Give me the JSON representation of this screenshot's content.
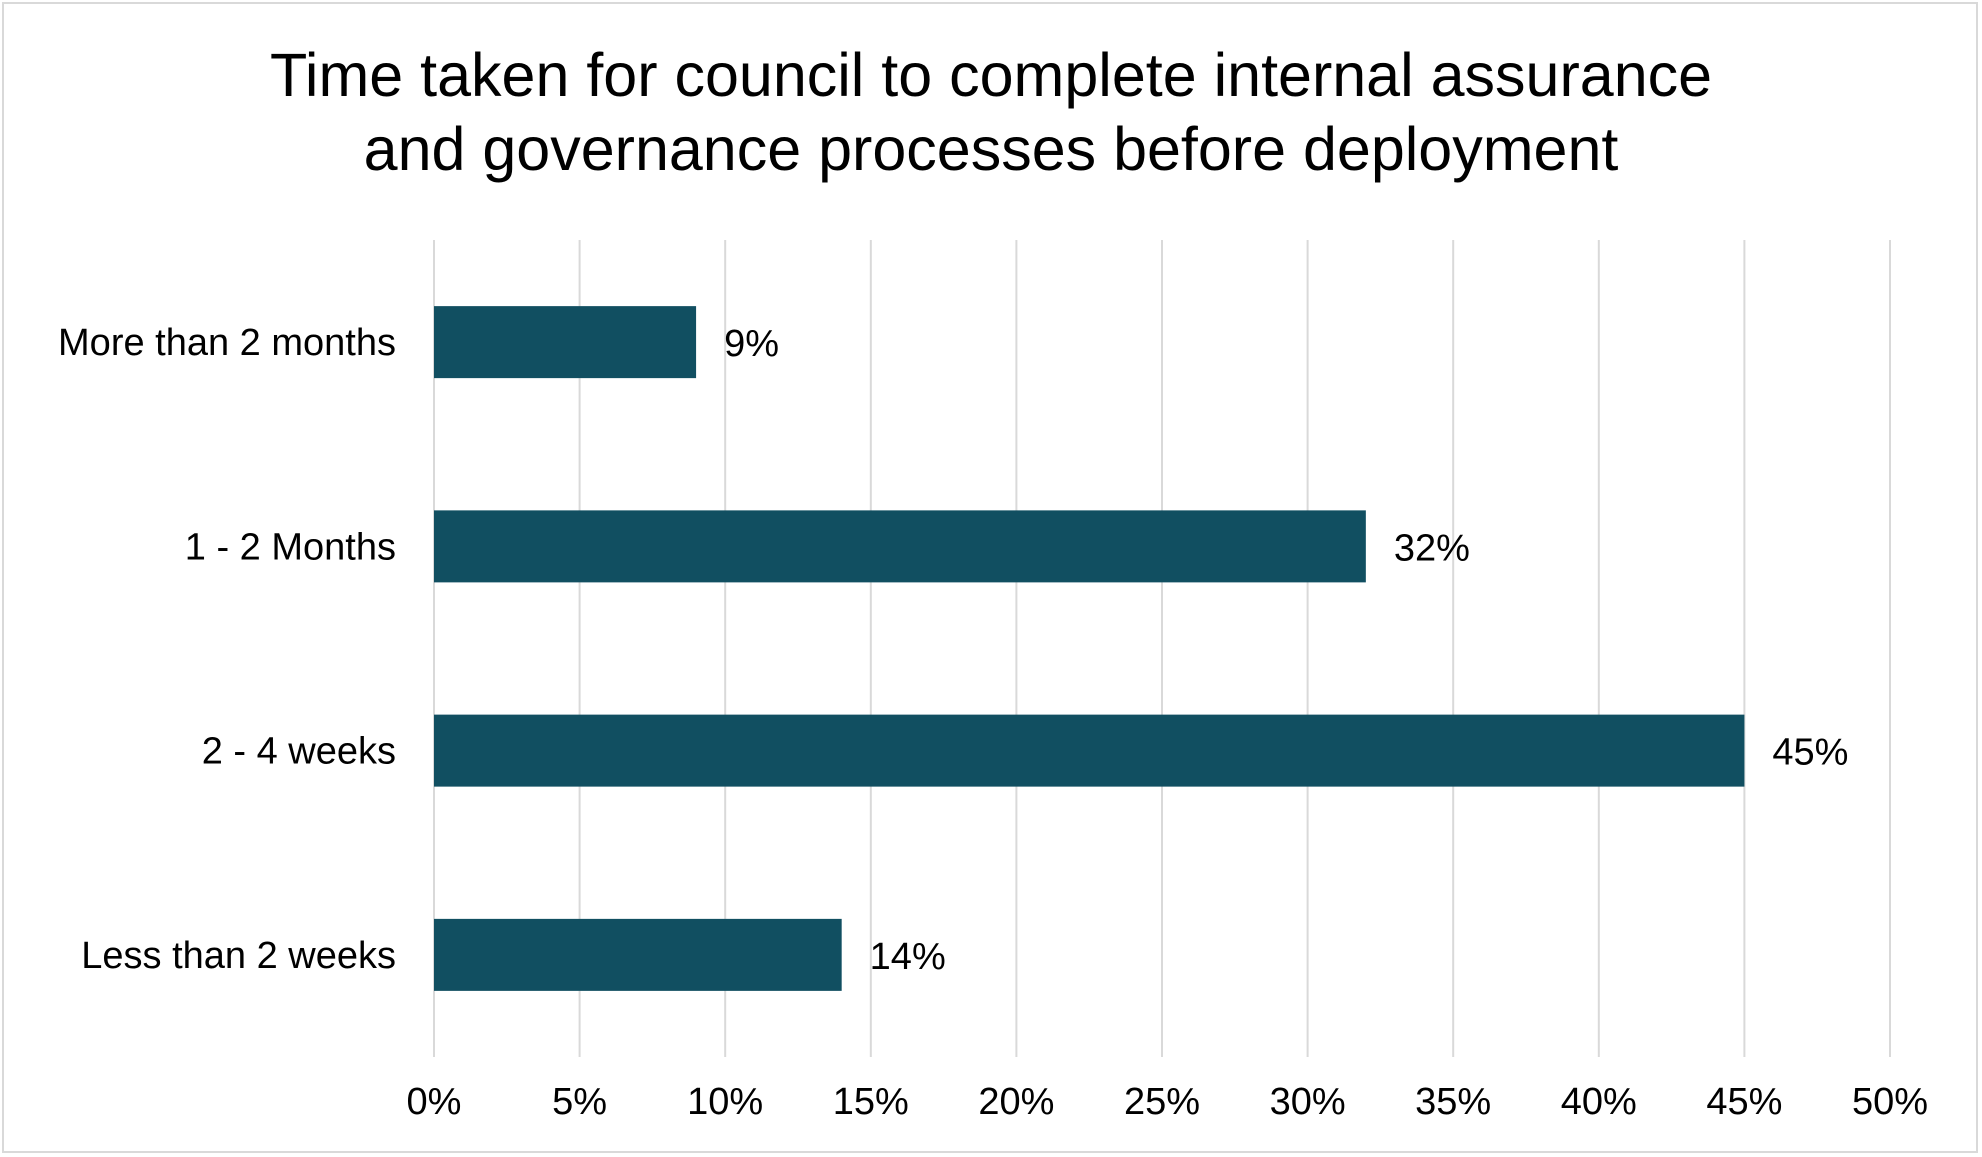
{
  "chart_data": {
    "type": "bar",
    "orientation": "horizontal",
    "title": "Time taken for council to complete internal assurance and governance processes before deployment",
    "title_lines": [
      "Time taken for council to complete internal assurance",
      "and governance processes before deployment"
    ],
    "categories": [
      "More than 2 months",
      "1 - 2 Months",
      "2 - 4 weeks",
      "Less than 2 weeks"
    ],
    "values": [
      9,
      32,
      45,
      14
    ],
    "data_labels": [
      "9%",
      "32%",
      "45%",
      "14%"
    ],
    "xlim": [
      0,
      50
    ],
    "x_ticks": [
      0,
      5,
      10,
      15,
      20,
      25,
      30,
      35,
      40,
      45,
      50
    ],
    "x_tick_labels": [
      "0%",
      "5%",
      "10%",
      "15%",
      "20%",
      "25%",
      "30%",
      "35%",
      "40%",
      "45%",
      "50%"
    ],
    "grid": true,
    "legend": "none",
    "bar_color": "#114f61",
    "grid_color": "#d9d9d9"
  }
}
